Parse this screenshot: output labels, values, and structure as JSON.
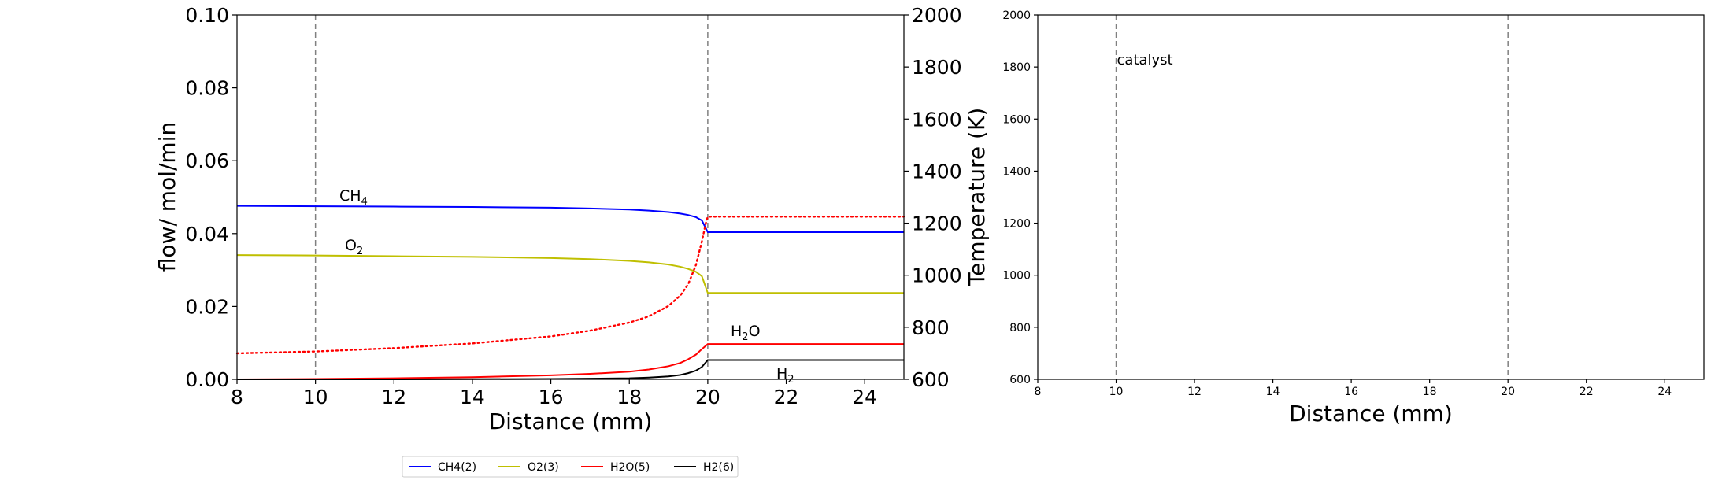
{
  "chart_data": [
    {
      "type": "line",
      "title": "",
      "xlabel": "Distance (mm)",
      "ylabel": "flow/ mol/min",
      "y2label": "Temperature (K)",
      "xlim": [
        8,
        25
      ],
      "ylim": [
        0,
        0.1
      ],
      "y2lim": [
        600,
        2000
      ],
      "xticks": [
        "8",
        "10",
        "12",
        "14",
        "16",
        "18",
        "20",
        "22",
        "24"
      ],
      "yticks": [
        "0.00",
        "0.02",
        "0.04",
        "0.06",
        "0.08",
        "0.10"
      ],
      "y2ticks": [
        "600",
        "800",
        "1000",
        "1200",
        "1400",
        "1600",
        "1800",
        "2000"
      ],
      "vlines": [
        10,
        20
      ],
      "grid": false,
      "series": [
        {
          "name": "CH4(2)",
          "label": "CH",
          "label_sub": "4",
          "color": "#0000ff",
          "x": [
            8,
            12,
            14,
            16,
            17,
            18,
            18.5,
            19,
            19.3,
            19.5,
            19.7,
            19.85,
            20,
            21,
            25
          ],
          "values": [
            0.0476,
            0.0474,
            0.0473,
            0.0471,
            0.0469,
            0.0466,
            0.0463,
            0.0459,
            0.0455,
            0.0451,
            0.0445,
            0.0436,
            0.0404,
            0.0404,
            0.0404
          ]
        },
        {
          "name": "O2(3)",
          "label": "O",
          "label_sub": "2",
          "color": "#bfbf00",
          "x": [
            8,
            10,
            12,
            14,
            16,
            17,
            18,
            18.5,
            19,
            19.3,
            19.5,
            19.7,
            19.85,
            20,
            21,
            25
          ],
          "values": [
            0.0341,
            0.034,
            0.0338,
            0.0336,
            0.0333,
            0.033,
            0.0325,
            0.0321,
            0.0315,
            0.0309,
            0.0303,
            0.0295,
            0.0283,
            0.0237,
            0.0237,
            0.0237
          ]
        },
        {
          "name": "H2O(5)",
          "label": "H",
          "label_sub": "2",
          "label_tail": "O",
          "color": "#ff0000",
          "x": [
            8,
            10,
            12,
            14,
            16,
            17,
            18,
            18.5,
            19,
            19.3,
            19.5,
            19.7,
            19.85,
            20,
            21,
            25
          ],
          "values": [
            0.0,
            0.0001,
            0.0003,
            0.0006,
            0.0011,
            0.0015,
            0.0021,
            0.0027,
            0.0036,
            0.0045,
            0.0055,
            0.0068,
            0.0083,
            0.0097,
            0.0097,
            0.0097
          ]
        },
        {
          "name": "H2(6)",
          "label": "H",
          "label_sub": "2",
          "color": "#000000",
          "x": [
            8,
            12,
            16,
            18,
            18.5,
            19,
            19.3,
            19.5,
            19.7,
            19.85,
            20,
            21,
            25
          ],
          "values": [
            0.0,
            0.0,
            0.0001,
            0.0003,
            0.0005,
            0.0008,
            0.0012,
            0.0017,
            0.0024,
            0.0034,
            0.0053,
            0.0053,
            0.0053
          ]
        },
        {
          "name": "Temperature",
          "axis": "y2",
          "style": "dotted",
          "color": "#ff0000",
          "x": [
            8,
            10,
            12,
            14,
            16,
            17,
            18,
            18.5,
            19,
            19.3,
            19.5,
            19.7,
            19.85,
            19.95,
            20,
            21,
            25
          ],
          "values": [
            700,
            707,
            720,
            738,
            765,
            787,
            818,
            842,
            882,
            922,
            965,
            1040,
            1130,
            1200,
            1225,
            1225,
            1225
          ]
        }
      ],
      "legend": {
        "position": "bottom-center",
        "entries": [
          {
            "label": "CH4(2)",
            "color": "#0000ff"
          },
          {
            "label": "O2(3)",
            "color": "#bfbf00"
          },
          {
            "label": "H2O(5)",
            "color": "#ff0000"
          },
          {
            "label": "H2(6)",
            "color": "#000000"
          }
        ]
      }
    },
    {
      "type": "line",
      "title": "",
      "xlabel": "Distance (mm)",
      "ylabel": "",
      "xlim": [
        8,
        25
      ],
      "ylim": [
        600,
        2000
      ],
      "xticks": [
        "8",
        "10",
        "12",
        "14",
        "16",
        "18",
        "20",
        "22",
        "24"
      ],
      "yticks": [
        "600",
        "800",
        "1000",
        "1200",
        "1400",
        "1600",
        "1800",
        "2000"
      ],
      "vlines": [
        10,
        20
      ],
      "annotation": "catalyst",
      "grid": false,
      "series": []
    }
  ]
}
